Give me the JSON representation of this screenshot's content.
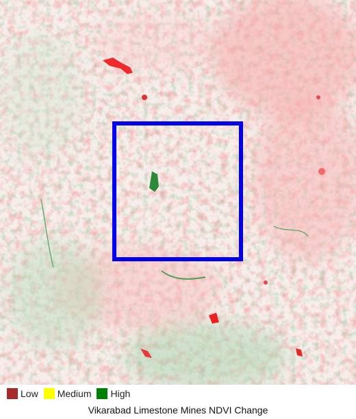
{
  "map": {
    "title": "Vikarabad Limestone Mines NDVI Change",
    "legend": [
      {
        "label": "Low",
        "color": "#a52a2a"
      },
      {
        "label": "Medium",
        "color": "#ffff00"
      },
      {
        "label": "High",
        "color": "#008000"
      }
    ],
    "highlight_color": "#0000ee",
    "loss_color": "#f26b6b",
    "gain_color": "#3f9a4a"
  }
}
